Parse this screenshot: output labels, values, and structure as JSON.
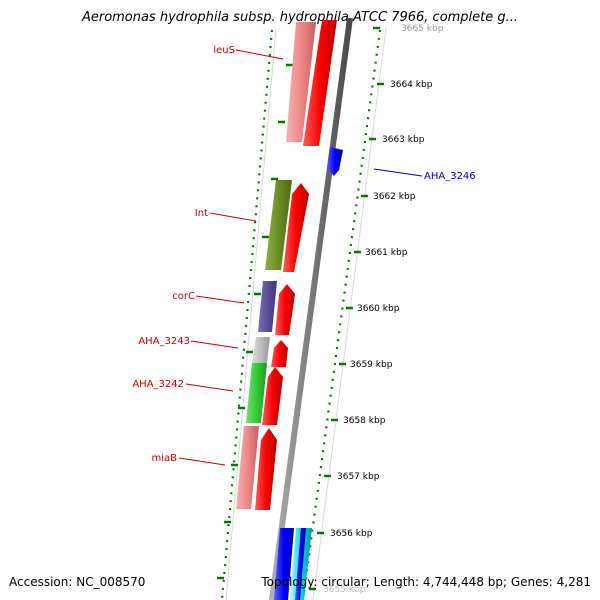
{
  "title": "Aeromonas hydrophila subsp. hydrophila ATCC 7966, complete g...",
  "footer": {
    "accession": "Accession: NC_008570",
    "info": "Topology: circular; Length: 4,744,448 bp; Genes: 4,281"
  },
  "ruler": {
    "labels": [
      "3665 kbp",
      "3664 kbp",
      "3663 kbp",
      "3662 kbp",
      "3661 kbp",
      "3660 kbp",
      "3659 kbp",
      "3658 kbp",
      "3657 kbp",
      "3656 kbp",
      "3655 kbp"
    ]
  },
  "gene_labels": [
    {
      "text": "leuS",
      "color": "#cc0000"
    },
    {
      "text": "Int",
      "color": "#cc0000"
    },
    {
      "text": "corC",
      "color": "#cc0000"
    },
    {
      "text": "AHA_3243",
      "color": "#cc0000"
    },
    {
      "text": "AHA_3242",
      "color": "#cc0000"
    },
    {
      "text": "miaB",
      "color": "#cc0000"
    },
    {
      "text": "AHA_3246",
      "color": "#0000cc"
    }
  ],
  "colors": {
    "cds_forward": "#ff0000",
    "cds_reverse": "#0000ff",
    "backbone": "#8c8c8c",
    "ticks": "#007a00",
    "cog_colors": [
      "#ee8888",
      "#6b8e23",
      "#5a4f9c",
      "#bbbbbb",
      "#33cc33",
      "#ee8888",
      "#0000ff",
      "#00cccc"
    ]
  }
}
